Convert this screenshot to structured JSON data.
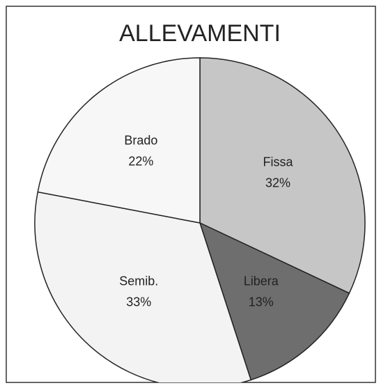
{
  "chart_data": {
    "type": "pie",
    "title": "ALLEVAMENTI",
    "categories": [
      "Fissa",
      "Libera",
      "Semib.",
      "Brado"
    ],
    "values": [
      32,
      13,
      33,
      22
    ],
    "value_labels": [
      "32%",
      "13%",
      "33%",
      "22%"
    ],
    "colors": [
      "#c6c6c6",
      "#6e6e6e",
      "#f3f3f3",
      "#f7f7f7"
    ]
  }
}
